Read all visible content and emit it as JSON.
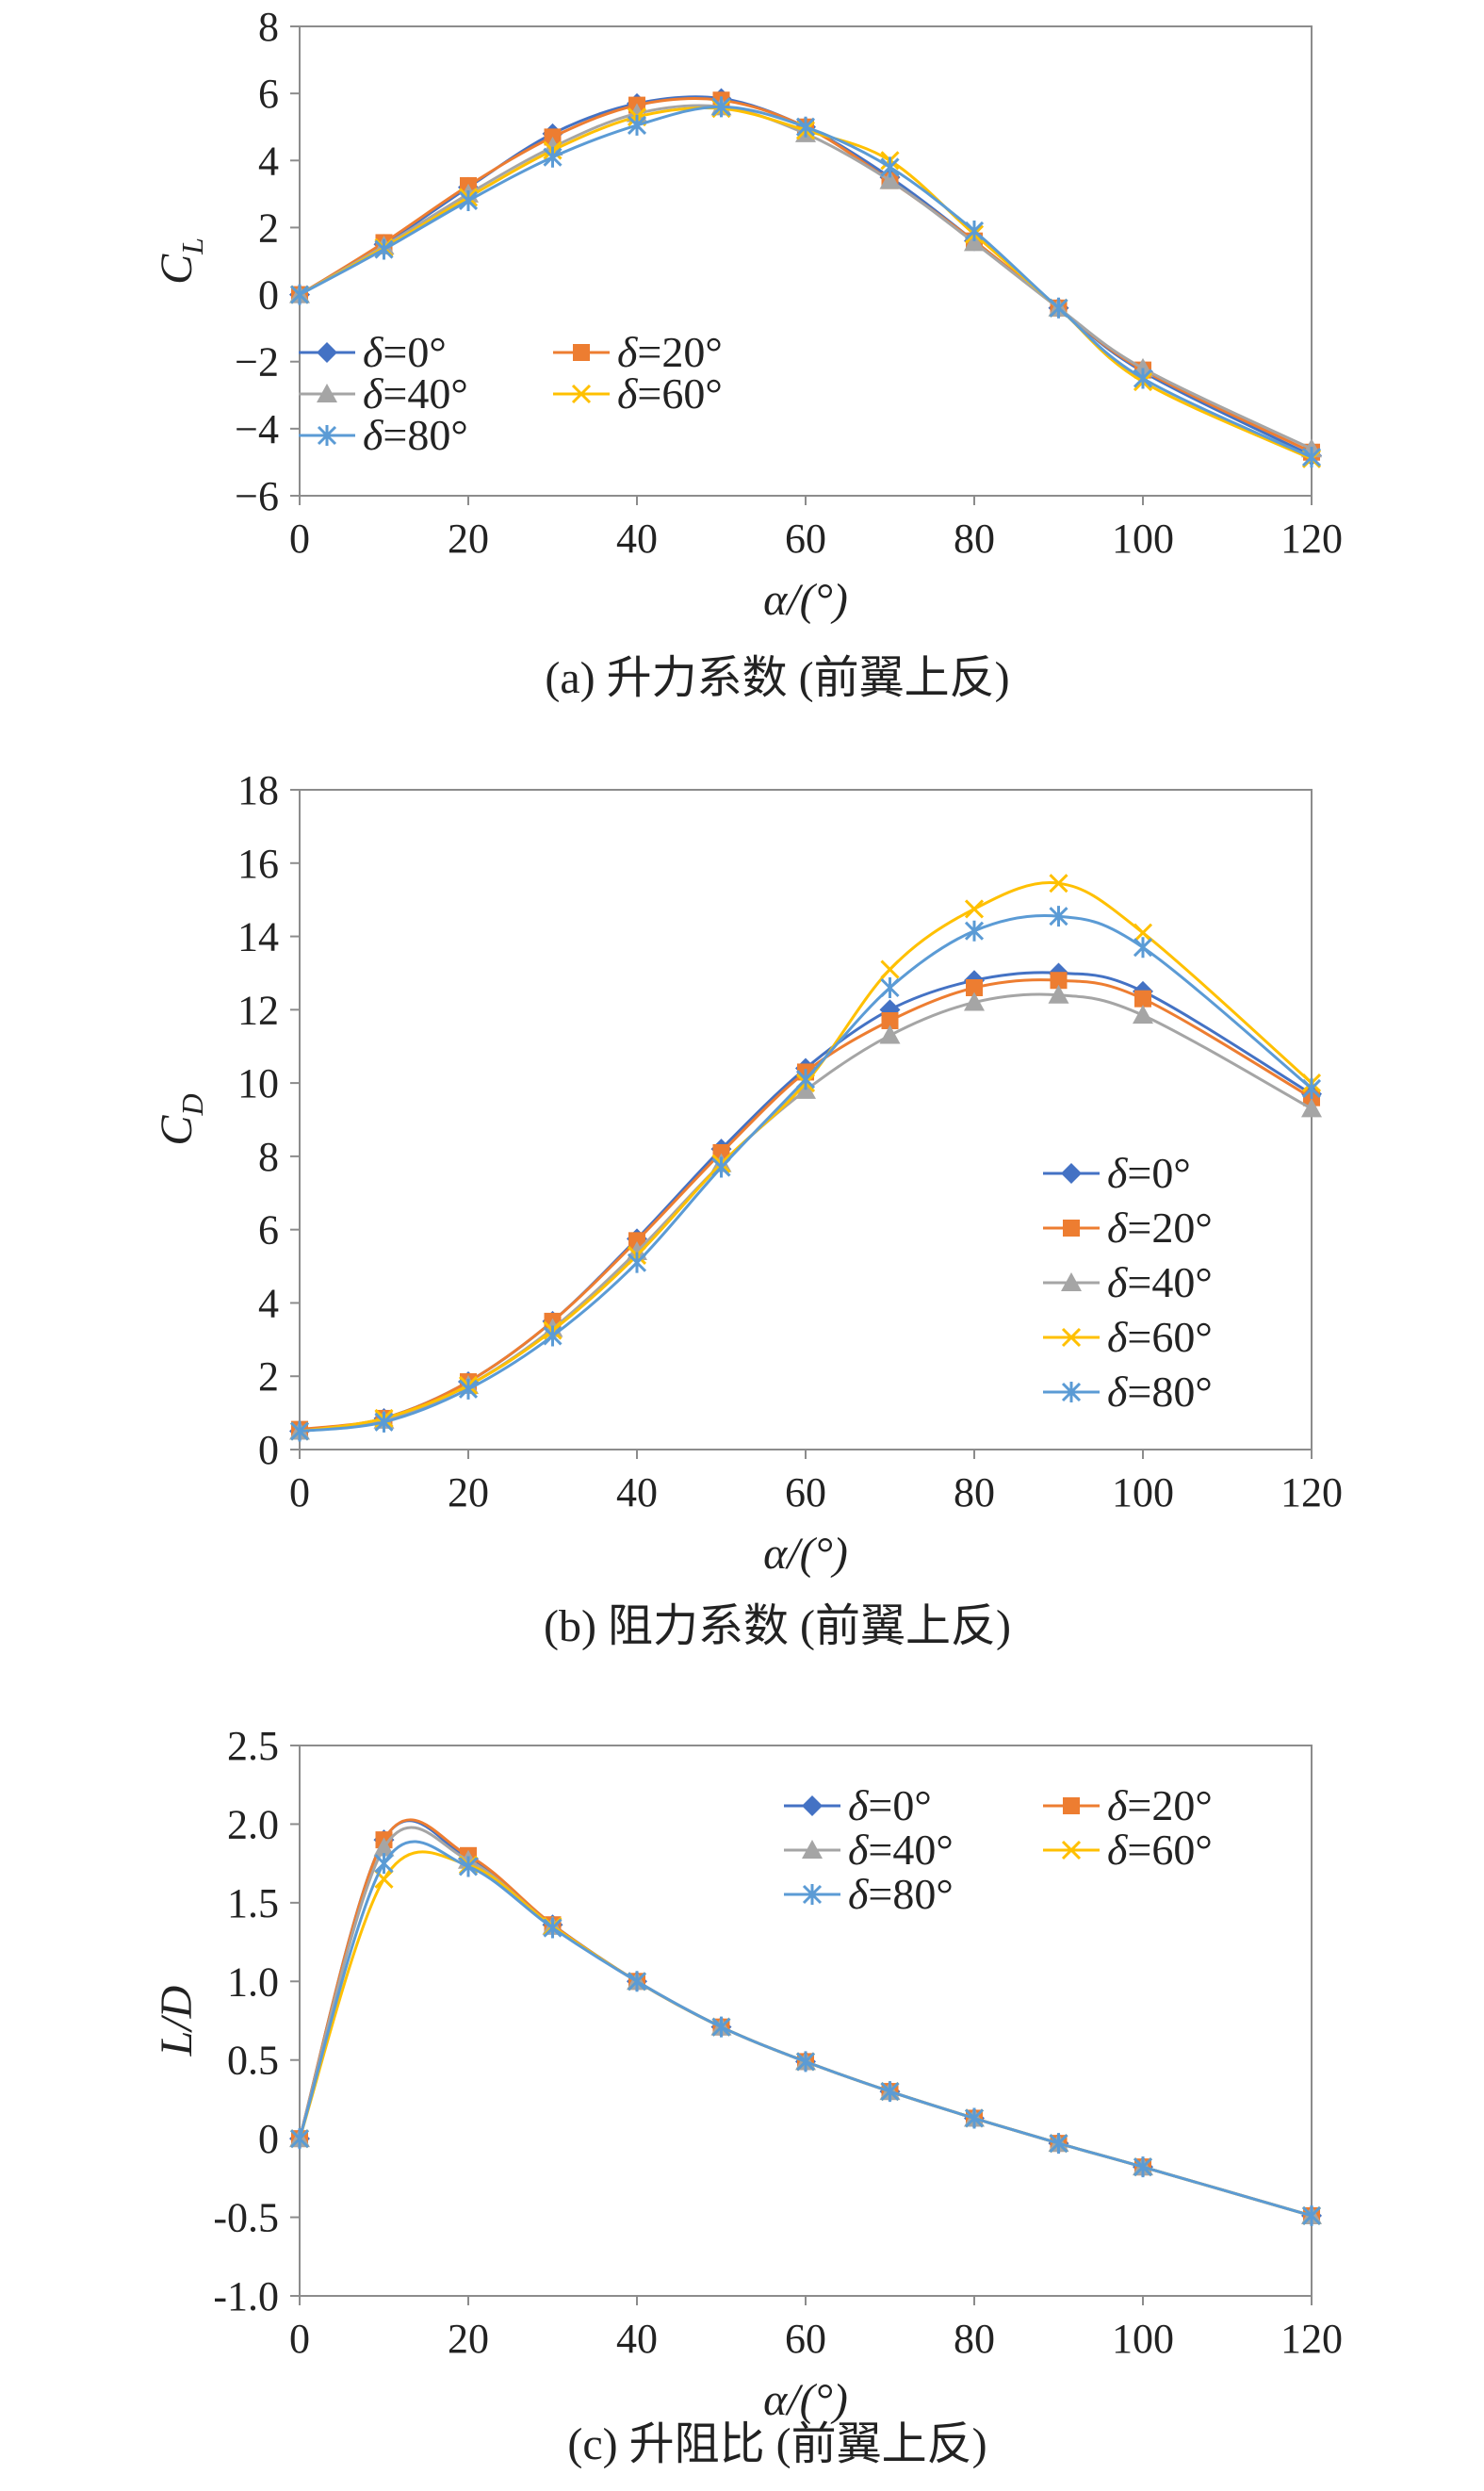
{
  "series_styles": [
    {
      "name": "δ=0°",
      "color": "#4472C4",
      "marker": "diamond"
    },
    {
      "name": "δ=20°",
      "color": "#ED7D31",
      "marker": "square"
    },
    {
      "name": "δ=40°",
      "color": "#A5A5A5",
      "marker": "triangle"
    },
    {
      "name": "δ=60°",
      "color": "#FFC000",
      "marker": "x"
    },
    {
      "name": "δ=80°",
      "color": "#5B9BD5",
      "marker": "star"
    }
  ],
  "chart_data": [
    {
      "type": "line",
      "caption": "(a) 升力系数 (前翼上反)",
      "xlabel": "α/(°)",
      "ylabel": "C",
      "ylabel_sub": "L",
      "xlim": [
        0,
        120
      ],
      "ylim": [
        -6,
        8
      ],
      "xticks": [
        0,
        20,
        40,
        60,
        80,
        100,
        120
      ],
      "yticks": [
        -6,
        -4,
        -2,
        0,
        2,
        4,
        6,
        8
      ],
      "ytick_labels": [
        "−6",
        "−4",
        "−2",
        "0",
        "2",
        "4",
        "6",
        "8"
      ],
      "legend": "two-column, lower-left",
      "x": [
        0,
        10,
        20,
        30,
        40,
        50,
        60,
        70,
        80,
        90,
        100,
        120
      ],
      "series": [
        {
          "name": "δ=0°",
          "values": [
            0,
            1.5,
            3.2,
            4.8,
            5.7,
            5.85,
            5.0,
            3.5,
            1.6,
            -0.4,
            -2.3,
            -4.8
          ]
        },
        {
          "name": "δ=20°",
          "values": [
            0,
            1.55,
            3.25,
            4.7,
            5.65,
            5.8,
            5.0,
            3.4,
            1.6,
            -0.4,
            -2.25,
            -4.7
          ]
        },
        {
          "name": "δ=40°",
          "values": [
            0,
            1.45,
            3.0,
            4.4,
            5.4,
            5.6,
            4.8,
            3.4,
            1.55,
            -0.4,
            -2.2,
            -4.6
          ]
        },
        {
          "name": "δ=60°",
          "values": [
            0,
            1.4,
            2.9,
            4.3,
            5.3,
            5.55,
            4.9,
            4.0,
            1.8,
            -0.4,
            -2.6,
            -4.9
          ]
        },
        {
          "name": "δ=80°",
          "values": [
            0,
            1.35,
            2.8,
            4.1,
            5.05,
            5.6,
            5.0,
            3.8,
            1.9,
            -0.4,
            -2.5,
            -4.85
          ]
        }
      ]
    },
    {
      "type": "line",
      "caption": "(b) 阻力系数 (前翼上反)",
      "xlabel": "α/(°)",
      "ylabel": "C",
      "ylabel_sub": "D",
      "xlim": [
        0,
        120
      ],
      "ylim": [
        0,
        18
      ],
      "xticks": [
        0,
        20,
        40,
        60,
        80,
        100,
        120
      ],
      "yticks": [
        0,
        2,
        4,
        6,
        8,
        10,
        12,
        14,
        16,
        18
      ],
      "ytick_labels": [
        "0",
        "2",
        "4",
        "6",
        "8",
        "10",
        "12",
        "14",
        "16",
        "18"
      ],
      "legend": "one-column, lower-right",
      "x": [
        0,
        10,
        20,
        30,
        40,
        50,
        60,
        70,
        80,
        90,
        100,
        120
      ],
      "series": [
        {
          "name": "δ=0°",
          "values": [
            0.5,
            0.85,
            1.85,
            3.5,
            5.75,
            8.2,
            10.4,
            12.0,
            12.8,
            13.0,
            12.5,
            9.7
          ]
        },
        {
          "name": "δ=20°",
          "values": [
            0.55,
            0.85,
            1.85,
            3.5,
            5.7,
            8.1,
            10.3,
            11.7,
            12.6,
            12.8,
            12.3,
            9.6
          ]
        },
        {
          "name": "δ=40°",
          "values": [
            0.5,
            0.8,
            1.75,
            3.3,
            5.4,
            7.8,
            9.8,
            11.3,
            12.2,
            12.4,
            11.85,
            9.3
          ]
        },
        {
          "name": "δ=60°",
          "values": [
            0.5,
            0.85,
            1.75,
            3.25,
            5.3,
            7.8,
            10.0,
            13.1,
            14.75,
            15.45,
            14.1,
            10.0
          ]
        },
        {
          "name": "δ=80°",
          "values": [
            0.5,
            0.75,
            1.65,
            3.1,
            5.1,
            7.7,
            10.1,
            12.6,
            14.15,
            14.55,
            13.7,
            9.85
          ]
        }
      ]
    },
    {
      "type": "line",
      "caption": "(c) 升阻比 (前翼上反)",
      "xlabel": "α/(°)",
      "ylabel": "L/D",
      "ylabel_sub": "",
      "xlim": [
        0,
        120
      ],
      "ylim": [
        -1.0,
        2.5
      ],
      "xticks": [
        0,
        20,
        40,
        60,
        80,
        100,
        120
      ],
      "yticks": [
        -1.0,
        -0.5,
        0,
        0.5,
        1.0,
        1.5,
        2.0,
        2.5
      ],
      "ytick_labels": [
        "-1.0",
        "-0.5",
        "0",
        "0.5",
        "1.0",
        "1.5",
        "2.0",
        "2.5"
      ],
      "legend": "two-column, upper-right",
      "x": [
        0,
        10,
        20,
        30,
        40,
        50,
        60,
        70,
        80,
        90,
        100,
        120
      ],
      "series": [
        {
          "name": "δ=0°",
          "values": [
            0,
            1.9,
            1.78,
            1.36,
            1.0,
            0.71,
            0.49,
            0.3,
            0.13,
            -0.03,
            -0.18,
            -0.49
          ]
        },
        {
          "name": "δ=20°",
          "values": [
            0,
            1.9,
            1.8,
            1.36,
            1.0,
            0.71,
            0.49,
            0.3,
            0.13,
            -0.03,
            -0.18,
            -0.49
          ]
        },
        {
          "name": "δ=40°",
          "values": [
            0,
            1.85,
            1.77,
            1.35,
            1.0,
            0.71,
            0.49,
            0.3,
            0.13,
            -0.03,
            -0.18,
            -0.49
          ]
        },
        {
          "name": "δ=60°",
          "values": [
            0,
            1.65,
            1.74,
            1.35,
            1.0,
            0.71,
            0.49,
            0.3,
            0.13,
            -0.03,
            -0.18,
            -0.49
          ]
        },
        {
          "name": "δ=80°",
          "values": [
            0,
            1.75,
            1.73,
            1.34,
            1.0,
            0.71,
            0.49,
            0.3,
            0.13,
            -0.03,
            -0.18,
            -0.49
          ]
        }
      ]
    }
  ]
}
